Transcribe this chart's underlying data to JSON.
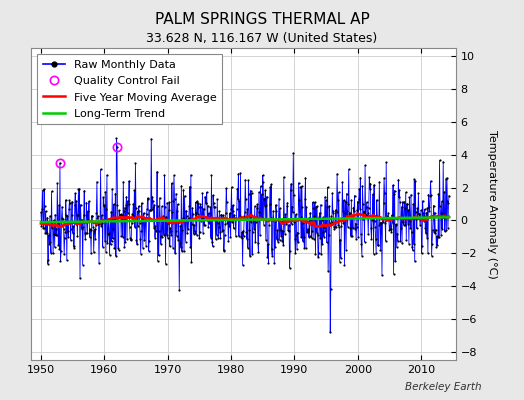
{
  "title": "PALM SPRINGS THERMAL AP",
  "subtitle": "33.628 N, 116.167 W (United States)",
  "ylabel": "Temperature Anomaly (°C)",
  "attribution": "Berkeley Earth",
  "xlim": [
    1948.5,
    2015.5
  ],
  "ylim": [
    -8.5,
    10.5
  ],
  "yticks": [
    -8,
    -6,
    -4,
    -2,
    0,
    2,
    4,
    6,
    8,
    10
  ],
  "xticks": [
    1950,
    1960,
    1970,
    1980,
    1990,
    2000,
    2010
  ],
  "fig_bg_color": "#e8e8e8",
  "plot_bg_color": "#ffffff",
  "raw_color": "#0000ff",
  "raw_lw": 0.6,
  "dot_color": "#000000",
  "dot_size": 2.5,
  "qc_color": "#ff00ff",
  "moving_avg_color": "#ff0000",
  "moving_avg_lw": 1.8,
  "trend_color": "#00cc00",
  "trend_lw": 1.8,
  "title_fontsize": 11,
  "subtitle_fontsize": 9,
  "legend_fontsize": 8,
  "tick_fontsize": 8,
  "seed": 42,
  "n_months": 774,
  "years_start": 1950,
  "qc_indices": [
    36,
    144
  ],
  "spike_indices": [
    36,
    37,
    143,
    144,
    548,
    549
  ],
  "spike_values": [
    3.5,
    -2.5,
    5.0,
    4.5,
    -6.8,
    -4.2
  ]
}
